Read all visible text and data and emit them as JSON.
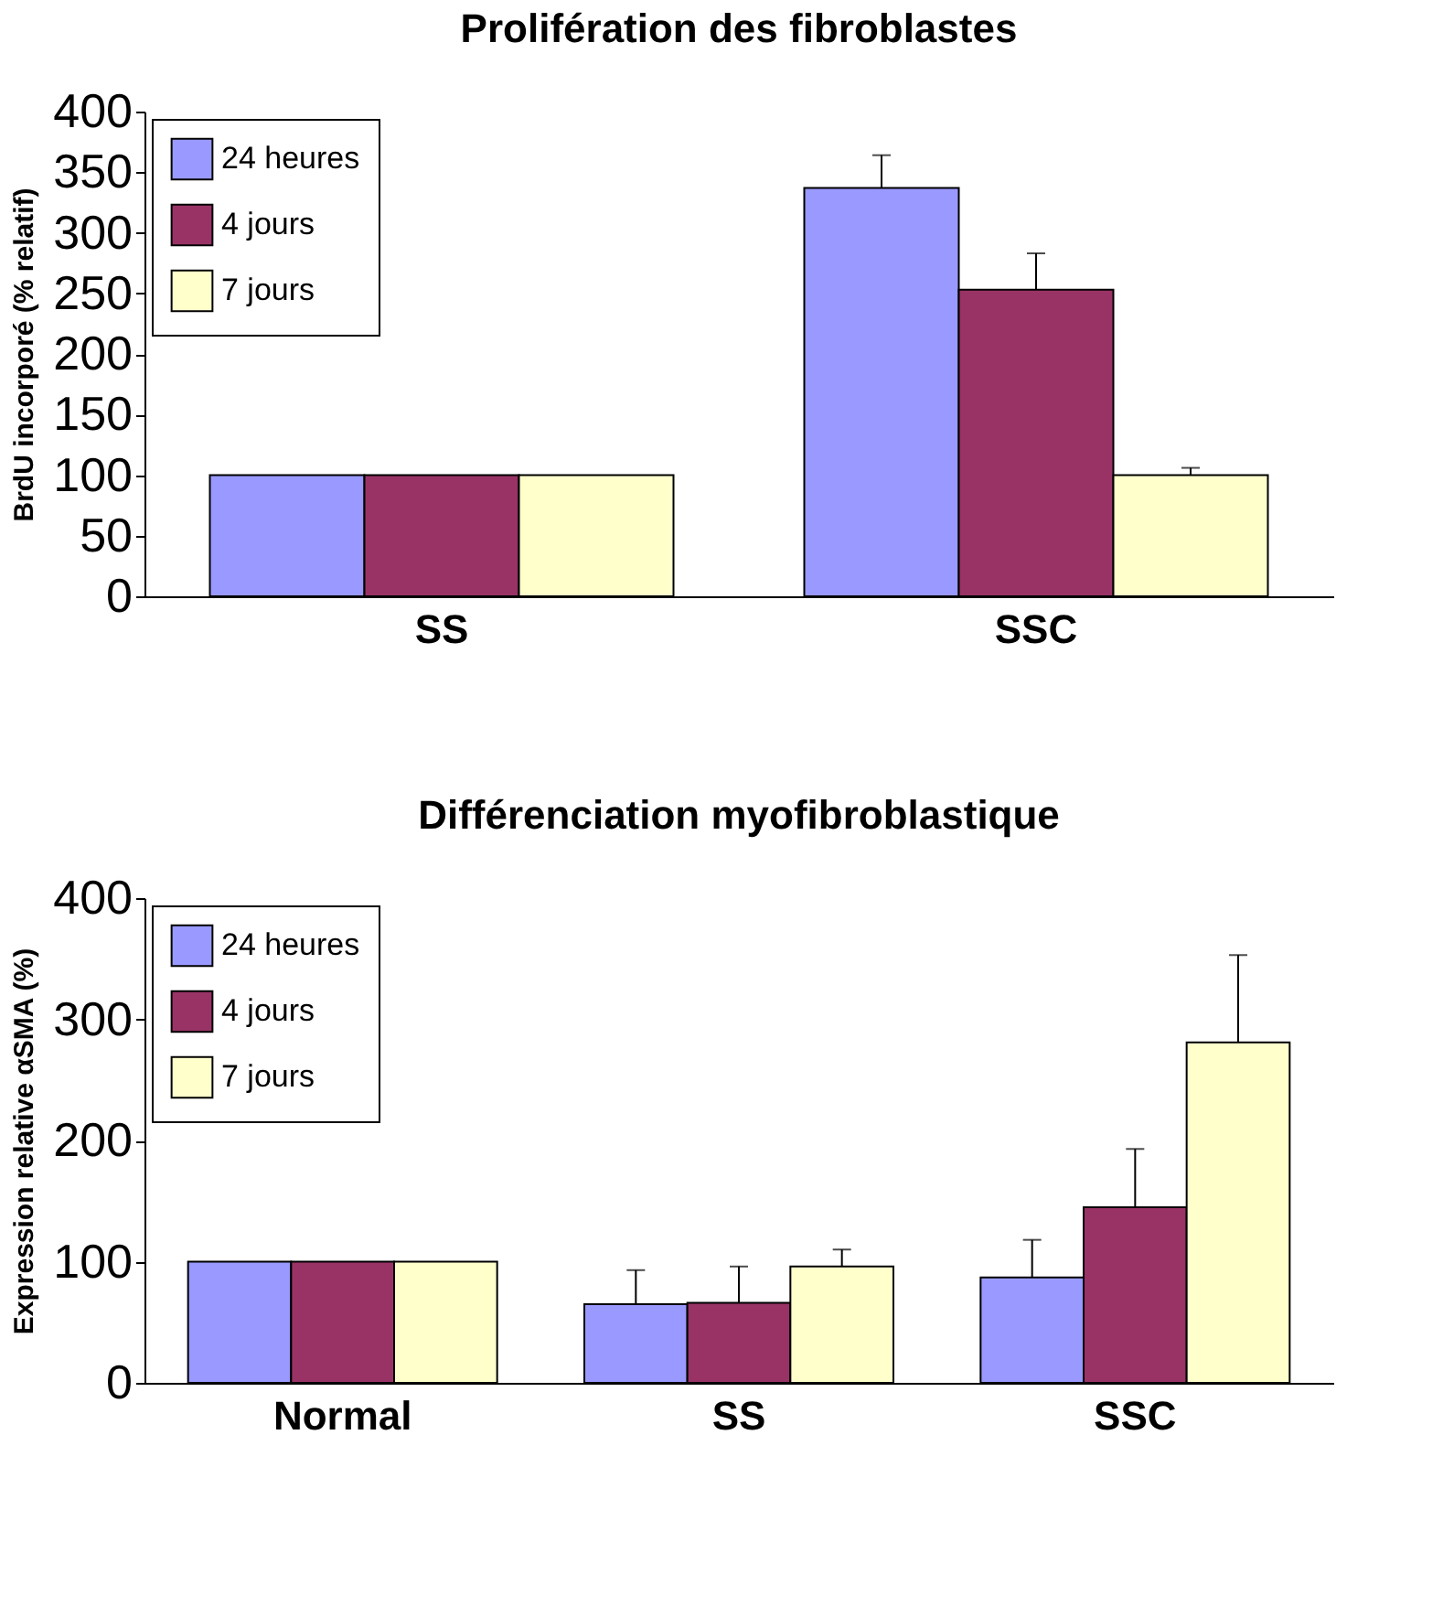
{
  "chart_data": [
    {
      "type": "bar",
      "title": "Prolifération des fibroblastes",
      "ylabel": "BrdU incorporé (% relatif)",
      "categories": [
        "SS",
        "SSC"
      ],
      "ylim": [
        0,
        400
      ],
      "yticks": [
        0,
        50,
        100,
        150,
        200,
        250,
        300,
        350,
        400
      ],
      "grid": false,
      "legend": "top left",
      "series": [
        {
          "name": "24 heures",
          "color": "#9999ff",
          "values": [
            100,
            337
          ],
          "errors": [
            null,
            [
              337,
              364
            ]
          ]
        },
        {
          "name": "4 jours",
          "color": "#993366",
          "values": [
            100,
            253
          ],
          "errors": [
            null,
            [
              253,
              283
            ]
          ]
        },
        {
          "name": "7 jours",
          "color": "#ffffcc",
          "values": [
            100,
            100
          ],
          "errors": [
            null,
            [
              100,
              106
            ]
          ]
        }
      ]
    },
    {
      "type": "bar",
      "title": "Différenciation myofibroblastique",
      "ylabel": "Expression relative αSMA (%)",
      "categories": [
        "Normal",
        "SS",
        "SSC"
      ],
      "ylim": [
        0,
        400
      ],
      "yticks": [
        0,
        100,
        200,
        300,
        400
      ],
      "grid": false,
      "legend": "top left",
      "series": [
        {
          "name": "24 heures",
          "color": "#9999ff",
          "values": [
            100,
            65,
            87
          ],
          "errors": [
            null,
            [
              65,
              93
            ],
            [
              87,
              118
            ]
          ]
        },
        {
          "name": "4 jours",
          "color": "#993366",
          "values": [
            100,
            66,
            145
          ],
          "errors": [
            null,
            [
              66,
              96
            ],
            [
              145,
              193
            ]
          ]
        },
        {
          "name": "7 jours",
          "color": "#ffffcc",
          "values": [
            100,
            96,
            281
          ],
          "errors": [
            null,
            [
              96,
              110
            ],
            [
              281,
              353
            ]
          ]
        }
      ]
    }
  ]
}
